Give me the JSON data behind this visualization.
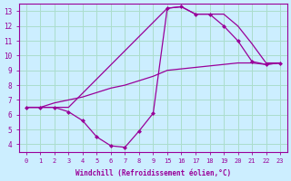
{
  "xlabel": "Windchill (Refroidissement éolien,°C)",
  "bg_color": "#cceeff",
  "line_color": "#990099",
  "grid_color": "#aaddcc",
  "line1_x": [
    0,
    1,
    2,
    3,
    4,
    5,
    6,
    7,
    8,
    9,
    10,
    11,
    12,
    13,
    14,
    15,
    16,
    17,
    18
  ],
  "line1_y": [
    6.5,
    6.5,
    6.5,
    6.2,
    5.6,
    4.5,
    3.9,
    3.8,
    4.9,
    6.1,
    13.2,
    13.3,
    12.8,
    12.8,
    12.0,
    11.0,
    9.6,
    9.4,
    9.5
  ],
  "line2_x": [
    0,
    1,
    2,
    3,
    10,
    11,
    12,
    13,
    14,
    15,
    16,
    17,
    18
  ],
  "line2_y": [
    6.5,
    6.5,
    6.5,
    6.5,
    13.2,
    13.3,
    12.8,
    12.8,
    12.8,
    12.0,
    10.8,
    9.5,
    9.5
  ],
  "line3_x": [
    0,
    1,
    2,
    3,
    4,
    5,
    6,
    7,
    8,
    9,
    10,
    11,
    12,
    13,
    14,
    15,
    16,
    17,
    18
  ],
  "line3_y": [
    6.5,
    6.5,
    6.8,
    7.0,
    7.2,
    7.5,
    7.8,
    8.0,
    8.3,
    8.6,
    9.0,
    9.1,
    9.2,
    9.3,
    9.4,
    9.5,
    9.5,
    9.4,
    9.5
  ],
  "yticks": [
    4,
    5,
    6,
    7,
    8,
    9,
    10,
    11,
    12,
    13
  ],
  "xtick_positions": [
    0,
    1,
    2,
    3,
    4,
    5,
    6,
    7,
    8,
    9,
    10,
    11,
    12,
    13,
    14,
    15,
    16,
    17,
    18
  ],
  "xtick_labels": [
    "0",
    "1",
    "2",
    "3",
    "4",
    "5",
    "6",
    "7",
    "8",
    "9",
    "15",
    "16",
    "17",
    "18",
    "19",
    "20",
    "21",
    "22",
    "23"
  ],
  "ylim": [
    3.5,
    13.5
  ],
  "xlim": [
    -0.5,
    18.5
  ]
}
